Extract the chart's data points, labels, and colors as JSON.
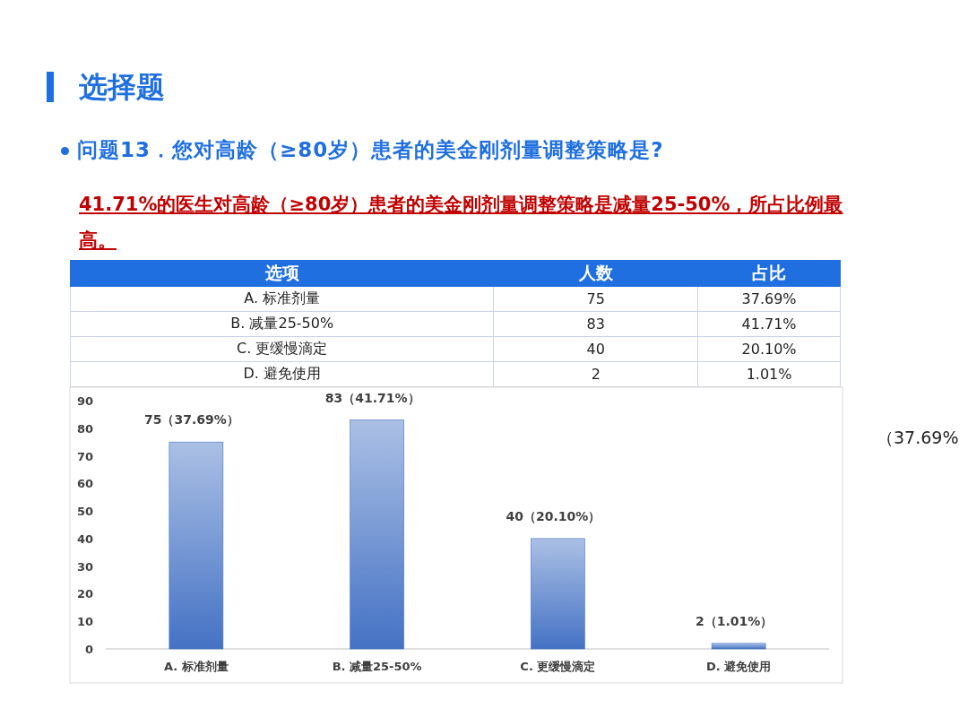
{
  "chart_data": [
    {
      "type": "other",
      "title": "选择题",
      "subtitle": "问题13．您对高龄（≥80岁）患者的美金刚剂量调整策略是?",
      "annotations": [
        "41.71%的医生对高龄（≥80岁）患者的美金刚剂量调整策略是减量25-50%，所占比例最高。"
      ],
      "xlabel": "选项",
      "categories": [
        "A. 标准剂量",
        "B. 减量25-50%",
        "C. 更缓慢滴定",
        "D. 避免使用"
      ],
      "series": [
        {
          "name": "人数",
          "values": [
            75,
            83,
            40,
            2
          ]
        },
        {
          "name": "占比",
          "values": [
            37.69,
            41.71,
            20.1,
            1.01
          ],
          "value_labels": [
            "37.69%",
            "41.71%",
            "20.10%",
            "1.01%"
          ]
        }
      ],
      "data_labels": true
    },
    {
      "type": "bar",
      "categories": [
        "A. 标准剂量",
        "B. 减量25-50%",
        "C. 更缓慢滴定",
        "D. 避免使用"
      ],
      "values": [
        75,
        83,
        40,
        2
      ],
      "color": "#4472c4",
      "ylim": [
        0,
        90
      ],
      "yticks": [
        0,
        10,
        20,
        30,
        40,
        50,
        60,
        70,
        80,
        90
      ],
      "value_labels": [
        "75（37.69%）",
        "83（41.71%）",
        "40（20.10%）",
        "2（1.01%）"
      ],
      "grid": false,
      "annotations": [
        "（37.69%"
      ]
    }
  ]
}
